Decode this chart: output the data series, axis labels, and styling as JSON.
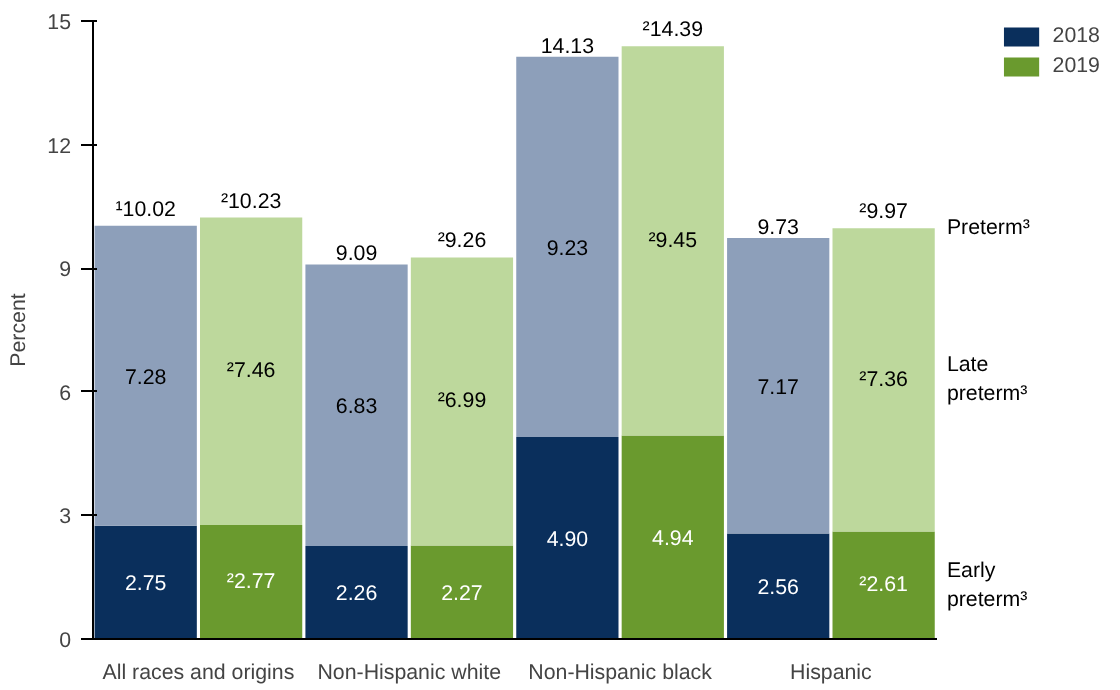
{
  "chart_data": {
    "type": "bar",
    "stacked": true,
    "ylabel": "Percent",
    "categories": [
      "All races and origins",
      null,
      "Non-Hispanic white",
      null,
      "Non-Hispanic black",
      null,
      "Hispanic",
      null
    ],
    "series": [
      {
        "name": "2018",
        "color": "#0a2f5c",
        "values": [
          2.75,
          null,
          2.26,
          null,
          4.9,
          null,
          2.56,
          null
        ],
        "value_labels": [
          "2.75",
          null,
          "2.26",
          null,
          "4.90",
          null,
          "2.56",
          null
        ]
      },
      {
        "color": "#8d9fba",
        "values": [
          7.28,
          null,
          6.83,
          null,
          9.23,
          null,
          7.17,
          null
        ],
        "value_labels": [
          "7.28",
          null,
          "6.83",
          null,
          "9.23",
          null,
          "7.17",
          null
        ]
      },
      {
        "name": "2019",
        "color": "#6a9a2e",
        "values": [
          null,
          2.77,
          null,
          2.27,
          null,
          4.94,
          null,
          2.61
        ],
        "value_labels": [
          null,
          "²2.77",
          null,
          "2.27",
          null,
          "4.94",
          null,
          "²2.61"
        ]
      },
      {
        "color": "#bdd89c",
        "values": [
          null,
          7.46,
          null,
          6.99,
          null,
          9.45,
          null,
          7.36
        ],
        "value_labels": [
          null,
          "²7.46",
          null,
          "²6.99",
          null,
          "²9.45",
          null,
          "²7.36"
        ]
      }
    ],
    "totals": [
      "¹10.02",
      "²10.23",
      "9.09",
      "²9.26",
      "14.13",
      "²14.39",
      "9.73",
      "²9.97"
    ],
    "ylim": [
      0,
      15
    ],
    "yticks": [
      0,
      3,
      6,
      9,
      12,
      15
    ],
    "grid": false,
    "legend": "top right",
    "annotations": [
      "Preterm³",
      "Late\npreterm³",
      "Early\npreterm³"
    ]
  }
}
